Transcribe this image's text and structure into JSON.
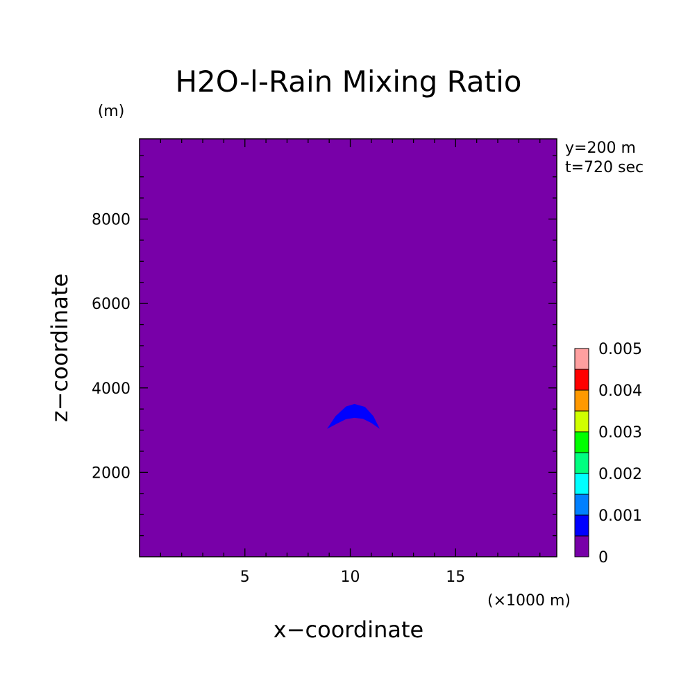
{
  "chart_data": {
    "type": "heatmap",
    "title": "H2O-l-Rain Mixing Ratio",
    "xlabel": "x−coordinate",
    "ylabel": "z−coordinate",
    "x_unit": "(×1000 m)",
    "y_unit": "(m)",
    "annotations": [
      "y=200 m",
      "t=720 sec"
    ],
    "xlim": [
      0,
      19.8
    ],
    "ylim": [
      0,
      9900
    ],
    "x_ticks": [
      5,
      10,
      15
    ],
    "y_ticks": [
      2000,
      4000,
      6000,
      8000
    ],
    "x_minor_step": 1,
    "y_minor_step": 500,
    "background_level": 0,
    "background_color": "#7800a8",
    "features": [
      {
        "shape": "crescent",
        "level": 0.0005,
        "color": "#0000ff",
        "x_range": [
          8.9,
          11.4
        ],
        "outer_arc_points": [
          [
            8.9,
            3030
          ],
          [
            9.3,
            3330
          ],
          [
            9.8,
            3560
          ],
          [
            10.2,
            3620
          ],
          [
            10.7,
            3550
          ],
          [
            11.1,
            3330
          ],
          [
            11.4,
            3030
          ]
        ],
        "inner_arc_points": [
          [
            11.4,
            3030
          ],
          [
            11.0,
            3170
          ],
          [
            10.6,
            3270
          ],
          [
            10.2,
            3290
          ],
          [
            9.8,
            3260
          ],
          [
            9.4,
            3160
          ],
          [
            8.9,
            3030
          ]
        ]
      }
    ],
    "colorbar": {
      "levels": [
        0,
        0.0005,
        0.001,
        0.0015,
        0.002,
        0.0025,
        0.003,
        0.0035,
        0.004,
        0.0045,
        0.005
      ],
      "tick_labels": [
        "0",
        "0.001",
        "0.002",
        "0.003",
        "0.004",
        "0.005"
      ],
      "tick_values": [
        0,
        0.001,
        0.002,
        0.003,
        0.004,
        0.005
      ],
      "colors": [
        "#7800a8",
        "#0000ff",
        "#0080ff",
        "#00ffff",
        "#00ff80",
        "#00ff00",
        "#d0ff00",
        "#ff9900",
        "#ff0000",
        "#ffa0a0"
      ]
    }
  }
}
